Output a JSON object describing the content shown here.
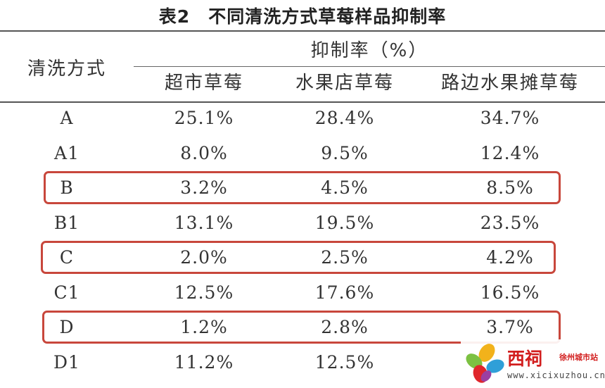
{
  "table": {
    "caption": "表2　不同清洗方式草莓样品抑制率",
    "row_header": "清洗方式",
    "group_header": "抑制率（%）",
    "columns": [
      "超市草莓",
      "水果店草莓",
      "路边水果摊草莓"
    ],
    "rows": [
      {
        "method": "A",
        "values": [
          "25.1%",
          "28.4%",
          "34.7%"
        ],
        "highlighted": false
      },
      {
        "method": "A1",
        "values": [
          "8.0%",
          "9.5%",
          "12.4%"
        ],
        "highlighted": false
      },
      {
        "method": "B",
        "values": [
          "3.2%",
          "4.5%",
          "8.5%"
        ],
        "highlighted": true
      },
      {
        "method": "B1",
        "values": [
          "13.1%",
          "19.5%",
          "23.5%"
        ],
        "highlighted": false
      },
      {
        "method": "C",
        "values": [
          "2.0%",
          "2.5%",
          "4.2%"
        ],
        "highlighted": true
      },
      {
        "method": "C1",
        "values": [
          "12.5%",
          "17.6%",
          "16.5%"
        ],
        "highlighted": false
      },
      {
        "method": "D",
        "values": [
          "1.2%",
          "2.8%",
          "3.7%"
        ],
        "highlighted": true
      },
      {
        "method": "D1",
        "values": [
          "11.2%",
          "12.5%",
          ""
        ],
        "highlighted": false
      }
    ]
  },
  "watermark": {
    "name": "西祠",
    "subname": "徐州城市站",
    "url": "www.xicixuzhou.cn",
    "icon": "pinwheel-logo-icon"
  },
  "colors": {
    "highlight_border": "#c8473c",
    "watermark_red": "#d21e1e"
  }
}
